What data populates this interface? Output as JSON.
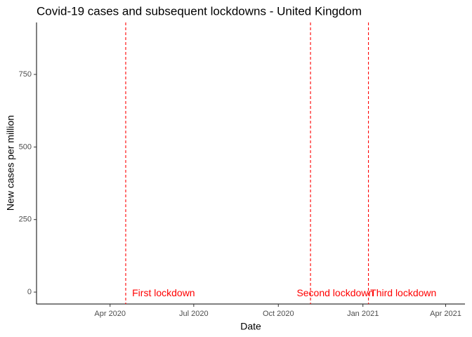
{
  "chart_data": {
    "type": "line",
    "title": "Covid-19 cases and subsequent lockdowns - United Kingdom",
    "x_label": "Date",
    "y_label": "New cases per million",
    "series": [],
    "xlim": [
      "2020-01-12",
      "2021-04-22"
    ],
    "xticks": [
      {
        "value": "2020-04-01",
        "label": "Apr 2020"
      },
      {
        "value": "2020-07-01",
        "label": "Jul 2020"
      },
      {
        "value": "2020-10-01",
        "label": "Oct 2020"
      },
      {
        "value": "2021-01-01",
        "label": "Jan 2021"
      },
      {
        "value": "2021-04-01",
        "label": "Apr 2021"
      }
    ],
    "ylim": [
      -41,
      929
    ],
    "yticks": [
      0,
      250,
      500,
      750
    ],
    "grid": false,
    "vlines": [
      {
        "x": "2020-04-18",
        "color": "#ff0000"
      },
      {
        "x": "2020-11-05",
        "color": "#ff0000"
      },
      {
        "x": "2021-01-07",
        "color": "#ff0000"
      }
    ],
    "annotations": [
      {
        "text": "First lockdown",
        "x": "2020-04-25",
        "y": 0,
        "color": "#ff0000"
      },
      {
        "text": "Second lockdown",
        "x": "2020-10-21",
        "y": 0,
        "color": "#ff0000"
      },
      {
        "text": "Third lockdown",
        "x": "2021-01-09",
        "y": 0,
        "color": "#ff0000"
      }
    ]
  }
}
